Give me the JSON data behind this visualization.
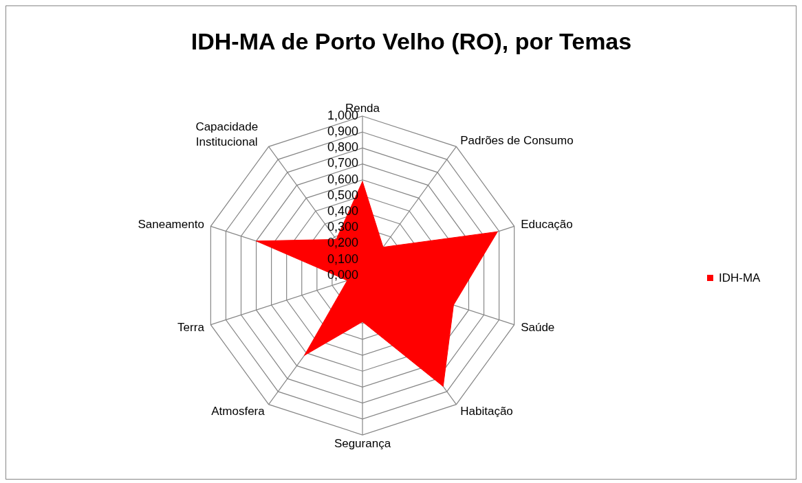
{
  "chart_data": {
    "type": "radar",
    "title": "IDH-MA de Porto Velho (RO),  por Temas",
    "categories": [
      "Renda",
      "Padrões de Consumo",
      "Educação",
      "Saúde",
      "Habitação",
      "Segurança",
      "Atmosfera",
      "Terra",
      "Saneamento",
      "Capacidade Institucional"
    ],
    "series": [
      {
        "name": "IDH-MA",
        "color": "#ff0000",
        "values": [
          0.59,
          0.22,
          0.89,
          0.6,
          0.86,
          0.29,
          0.62,
          0.1,
          0.7,
          0.28
        ]
      }
    ],
    "ylim": [
      0,
      1
    ],
    "yticks": [
      {
        "value": 0,
        "label": "0,000"
      },
      {
        "value": 0.1,
        "label": "0,100"
      },
      {
        "value": 0.2,
        "label": "0,200"
      },
      {
        "value": 0.3,
        "label": "0,300"
      },
      {
        "value": 0.4,
        "label": "0,400"
      },
      {
        "value": 0.5,
        "label": "0,500"
      },
      {
        "value": 0.6,
        "label": "0,600"
      },
      {
        "value": 0.7,
        "label": "0,700"
      },
      {
        "value": 0.8,
        "label": "0,800"
      },
      {
        "value": 0.9,
        "label": "0,900"
      },
      {
        "value": 1,
        "label": "1,000"
      }
    ],
    "grid": true,
    "legend": "right"
  }
}
